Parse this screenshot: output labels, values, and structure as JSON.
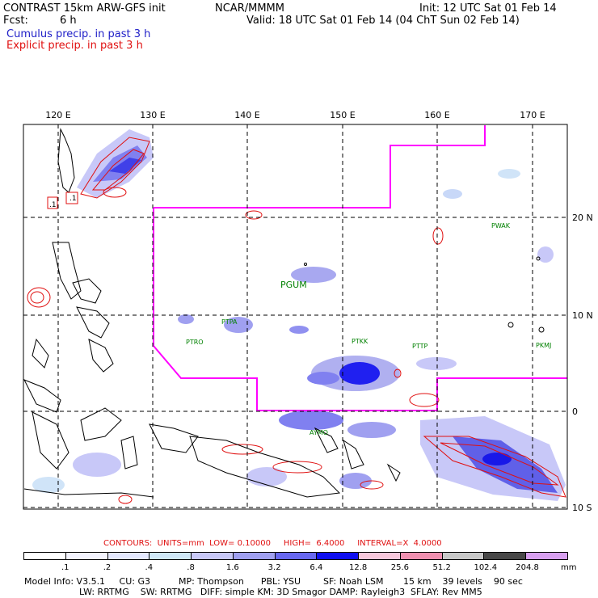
{
  "header": {
    "model_title": "CONTRAST 15km ARW-GFS init",
    "org": "NCAR/MMMM",
    "init": "Init: 12 UTC Sat 01 Feb 14",
    "fcst_label": "Fcst:",
    "fcst_value": "6 h",
    "valid": "Valid: 18 UTC Sat 01 Feb 14 (04 ChT Sun 02 Feb 14)",
    "legend_cumulus": "Cumulus precip. in past 3 h",
    "legend_explicit": "Explicit precip. in past 3 h"
  },
  "map": {
    "lon_labels": [
      "120 E",
      "130 E",
      "140 E",
      "150 E",
      "160 E",
      "170 E"
    ],
    "lat_labels": [
      "20 N",
      "10 N",
      "0",
      "10 S"
    ],
    "stations": [
      "PWAK",
      "PGUM",
      "PTPA",
      "PTRO",
      "PTKK",
      "PTTP",
      "PKMJ",
      "AYMO"
    ],
    "box_labels": [
      ".1",
      ".1"
    ]
  },
  "contours": {
    "text": "CONTOURS:  UNITS=mm  LOW= 0.10000     HIGH=  6.4000     INTERVAL=X  4.0000"
  },
  "colorbar": {
    "labels": [
      ".1",
      ".2",
      ".4",
      ".8",
      "1.6",
      "3.2",
      "6.4",
      "12.8",
      "25.6",
      "51.2",
      "102.4",
      "204.8"
    ],
    "colors": [
      "#ffffff",
      "#f4f4fe",
      "#e4e8fe",
      "#d0e8f8",
      "#c8c8f8",
      "#a0a0f0",
      "#6868f0",
      "#1010f0",
      "#f8c8dc",
      "#f090b0",
      "#c8c8c8",
      "#484848",
      "#d8a0f0"
    ],
    "unit": "mm"
  },
  "footer": {
    "line1": "Model Info: V3.5.1     CU: G3          MP: Thompson      PBL: YSU        SF: Noah LSM       15 km    39 levels    90 sec",
    "line2": "LW: RRTMG    SW: RRTMG   DIFF: simple KM: 3D Smagor DAMP: Rayleigh3  SFLAY: Rev MM5"
  },
  "colors": {
    "fir_boundary": "#ff00ff",
    "explicit_contour": "#e01010",
    "cumulus_text": "#2020c8",
    "station_label": "#008000"
  }
}
